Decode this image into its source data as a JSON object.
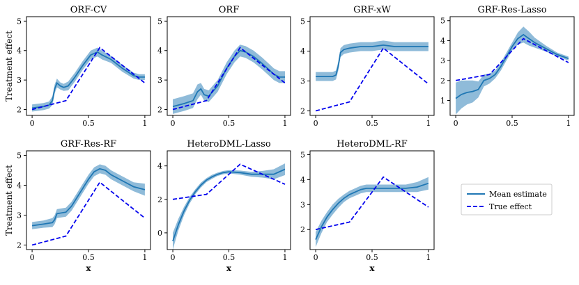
{
  "figure": {
    "ylabel": "Treatment effect",
    "xlabel": "x",
    "colors": {
      "mean": "#1f77b4",
      "band": "#1f77b4",
      "true": "#0000ee",
      "axis": "#000000"
    },
    "legend": {
      "position": "right-center",
      "mean_label": "Mean estimate",
      "true_label": "True effect"
    }
  },
  "chart_data": [
    {
      "type": "line",
      "title": "ORF-CV",
      "xlim": [
        -0.05,
        1.05
      ],
      "ylim": [
        1.8,
        5.15
      ],
      "xticks": [
        0.0,
        0.5,
        1.0
      ],
      "yticks": [
        2,
        3,
        4,
        5
      ],
      "show_ylabel": true,
      "show_xlabel": false,
      "true_effect": {
        "x": [
          0,
          0.3,
          0.6,
          1.0
        ],
        "y": [
          2.0,
          2.3,
          4.1,
          2.9
        ]
      },
      "mean_estimate": {
        "x": [
          0,
          0.1,
          0.15,
          0.18,
          0.2,
          0.22,
          0.25,
          0.28,
          0.32,
          0.38,
          0.45,
          0.52,
          0.58,
          0.62,
          0.7,
          0.8,
          0.9,
          0.95,
          1.0
        ],
        "y": [
          2.05,
          2.1,
          2.15,
          2.3,
          2.7,
          2.9,
          2.8,
          2.75,
          2.8,
          3.1,
          3.5,
          3.85,
          3.95,
          3.85,
          3.7,
          3.4,
          3.15,
          3.1,
          3.1
        ],
        "band": [
          0.12,
          0.12,
          0.12,
          0.15,
          0.15,
          0.15,
          0.12,
          0.12,
          0.15,
          0.15,
          0.15,
          0.15,
          0.15,
          0.15,
          0.12,
          0.12,
          0.1,
          0.1,
          0.1
        ]
      }
    },
    {
      "type": "line",
      "title": "ORF",
      "xlim": [
        -0.05,
        1.05
      ],
      "ylim": [
        1.8,
        5.15
      ],
      "xticks": [
        0.0,
        0.5,
        1.0
      ],
      "yticks": [
        2,
        3,
        4,
        5
      ],
      "show_ylabel": false,
      "show_xlabel": false,
      "true_effect": {
        "x": [
          0,
          0.3,
          0.6,
          1.0
        ],
        "y": [
          2.0,
          2.3,
          4.1,
          2.9
        ]
      },
      "mean_estimate": {
        "x": [
          0,
          0.1,
          0.18,
          0.22,
          0.25,
          0.28,
          0.32,
          0.4,
          0.48,
          0.55,
          0.6,
          0.65,
          0.72,
          0.8,
          0.9,
          0.95,
          1.0
        ],
        "y": [
          2.1,
          2.2,
          2.3,
          2.6,
          2.7,
          2.5,
          2.45,
          2.8,
          3.4,
          3.8,
          4.0,
          3.95,
          3.8,
          3.55,
          3.2,
          3.1,
          3.1
        ],
        "band": [
          0.25,
          0.25,
          0.25,
          0.25,
          0.2,
          0.2,
          0.2,
          0.2,
          0.2,
          0.2,
          0.2,
          0.2,
          0.2,
          0.2,
          0.2,
          0.2,
          0.2
        ]
      }
    },
    {
      "type": "line",
      "title": "GRF-xW",
      "xlim": [
        -0.05,
        1.05
      ],
      "ylim": [
        1.85,
        5.15
      ],
      "xticks": [
        0.0,
        0.5,
        1.0
      ],
      "yticks": [
        2,
        3,
        4,
        5
      ],
      "show_ylabel": false,
      "show_xlabel": false,
      "true_effect": {
        "x": [
          0,
          0.3,
          0.6,
          1.0
        ],
        "y": [
          2.0,
          2.3,
          4.1,
          2.9
        ]
      },
      "mean_estimate": {
        "x": [
          0,
          0.15,
          0.18,
          0.2,
          0.22,
          0.25,
          0.3,
          0.4,
          0.5,
          0.6,
          0.7,
          0.8,
          0.9,
          1.0
        ],
        "y": [
          3.15,
          3.15,
          3.2,
          3.5,
          3.95,
          4.05,
          4.1,
          4.15,
          4.15,
          4.2,
          4.15,
          4.15,
          4.15,
          4.15
        ],
        "band": [
          0.15,
          0.15,
          0.15,
          0.15,
          0.15,
          0.15,
          0.15,
          0.15,
          0.15,
          0.15,
          0.15,
          0.15,
          0.15,
          0.15
        ]
      }
    },
    {
      "type": "line",
      "title": "GRF-Res-Lasso",
      "xlim": [
        -0.05,
        1.05
      ],
      "ylim": [
        0.25,
        5.2
      ],
      "xticks": [
        0.0,
        0.5,
        1.0
      ],
      "yticks": [
        1,
        2,
        3,
        4,
        5
      ],
      "show_ylabel": false,
      "show_xlabel": false,
      "true_effect": {
        "x": [
          0,
          0.3,
          0.6,
          1.0
        ],
        "y": [
          2.0,
          2.3,
          4.1,
          2.9
        ]
      },
      "mean_estimate": {
        "x": [
          0,
          0.05,
          0.1,
          0.15,
          0.2,
          0.25,
          0.3,
          0.35,
          0.4,
          0.45,
          0.5,
          0.55,
          0.6,
          0.65,
          0.7,
          0.8,
          0.9,
          1.0
        ],
        "y": [
          1.1,
          1.3,
          1.4,
          1.45,
          1.55,
          2.0,
          2.1,
          2.3,
          2.7,
          3.2,
          3.7,
          4.1,
          4.3,
          4.1,
          3.9,
          3.6,
          3.3,
          3.1
        ],
        "band": [
          0.8,
          0.7,
          0.6,
          0.55,
          0.4,
          0.3,
          0.25,
          0.2,
          0.2,
          0.2,
          0.2,
          0.3,
          0.4,
          0.35,
          0.25,
          0.15,
          0.1,
          0.1
        ]
      }
    },
    {
      "type": "line",
      "title": "GRF-Res-RF",
      "xlim": [
        -0.05,
        1.05
      ],
      "ylim": [
        1.85,
        5.15
      ],
      "xticks": [
        0.0,
        0.5,
        1.0
      ],
      "yticks": [
        2,
        3,
        4,
        5
      ],
      "show_ylabel": true,
      "show_xlabel": true,
      "true_effect": {
        "x": [
          0,
          0.3,
          0.6,
          1.0
        ],
        "y": [
          2.0,
          2.3,
          4.1,
          2.9
        ]
      },
      "mean_estimate": {
        "x": [
          0,
          0.1,
          0.18,
          0.2,
          0.22,
          0.3,
          0.35,
          0.4,
          0.45,
          0.5,
          0.55,
          0.6,
          0.65,
          0.7,
          0.8,
          0.9,
          1.0
        ],
        "y": [
          2.65,
          2.7,
          2.75,
          2.85,
          3.05,
          3.1,
          3.3,
          3.6,
          3.9,
          4.2,
          4.45,
          4.55,
          4.5,
          4.35,
          4.15,
          3.95,
          3.85
        ],
        "band": [
          0.12,
          0.12,
          0.15,
          0.15,
          0.15,
          0.15,
          0.15,
          0.15,
          0.15,
          0.15,
          0.15,
          0.15,
          0.15,
          0.15,
          0.15,
          0.15,
          0.2
        ]
      }
    },
    {
      "type": "line",
      "title": "HeteroDML-Lasso",
      "xlim": [
        -0.05,
        1.05
      ],
      "ylim": [
        -1.0,
        4.9
      ],
      "xticks": [
        0.0,
        0.5,
        1.0
      ],
      "yticks": [
        0,
        2,
        4
      ],
      "show_ylabel": false,
      "show_xlabel": true,
      "true_effect": {
        "x": [
          0,
          0.3,
          0.6,
          1.0
        ],
        "y": [
          2.0,
          2.3,
          4.1,
          2.9
        ]
      },
      "mean_estimate": {
        "x": [
          0,
          0.05,
          0.1,
          0.15,
          0.2,
          0.25,
          0.3,
          0.35,
          0.4,
          0.45,
          0.5,
          0.6,
          0.7,
          0.8,
          0.9,
          1.0
        ],
        "y": [
          -0.5,
          0.5,
          1.3,
          1.95,
          2.45,
          2.85,
          3.15,
          3.35,
          3.5,
          3.6,
          3.65,
          3.6,
          3.5,
          3.5,
          3.5,
          3.8
        ],
        "band": [
          0.5,
          0.35,
          0.25,
          0.2,
          0.15,
          0.15,
          0.12,
          0.12,
          0.1,
          0.1,
          0.1,
          0.12,
          0.15,
          0.2,
          0.3,
          0.35
        ]
      }
    },
    {
      "type": "line",
      "title": "HeteroDML-RF",
      "xlim": [
        -0.05,
        1.05
      ],
      "ylim": [
        1.2,
        5.15
      ],
      "xticks": [
        0.0,
        0.5,
        1.0
      ],
      "yticks": [
        2,
        3,
        4,
        5
      ],
      "show_ylabel": false,
      "show_xlabel": true,
      "true_effect": {
        "x": [
          0,
          0.3,
          0.6,
          1.0
        ],
        "y": [
          2.0,
          2.3,
          4.1,
          2.9
        ]
      },
      "mean_estimate": {
        "x": [
          0,
          0.05,
          0.1,
          0.15,
          0.2,
          0.25,
          0.3,
          0.35,
          0.4,
          0.45,
          0.5,
          0.6,
          0.7,
          0.8,
          0.9,
          1.0
        ],
        "y": [
          1.6,
          2.1,
          2.5,
          2.8,
          3.05,
          3.25,
          3.4,
          3.5,
          3.6,
          3.65,
          3.65,
          3.65,
          3.65,
          3.65,
          3.7,
          3.85
        ],
        "band": [
          0.3,
          0.25,
          0.2,
          0.2,
          0.18,
          0.15,
          0.15,
          0.15,
          0.15,
          0.15,
          0.15,
          0.15,
          0.15,
          0.15,
          0.2,
          0.25
        ]
      }
    }
  ]
}
